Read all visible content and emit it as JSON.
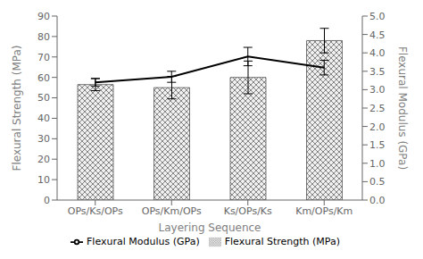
{
  "chart_data": {
    "type": "bar",
    "categories": [
      "OPs/Ks/OPs",
      "OPs/Km/OPs",
      "Ks/OPs/Ks",
      "Km/OPs/Km"
    ],
    "xlabel": "Layering Sequence",
    "ylabel": "Flexural Strength (MPa)",
    "y2label": "Flexural Modulus (GPa)",
    "series": [
      {
        "name": "Flexural Strength (MPa)",
        "type": "bar",
        "color": "#f0f0f0",
        "values": [
          56.5,
          55.0,
          60.0,
          78.0
        ],
        "errors": [
          3.0,
          5.5,
          8.0,
          6.0
        ]
      },
      {
        "name": "Flexural Modulus (GPa)",
        "type": "line",
        "color": "#000000",
        "axis": "y2",
        "values": [
          3.2,
          3.35,
          3.9,
          3.6
        ],
        "errors": [
          0.1,
          0.15,
          0.25,
          0.2
        ]
      }
    ],
    "ylim": [
      0,
      90
    ],
    "yticks": [
      0,
      10,
      20,
      30,
      40,
      50,
      60,
      70,
      80,
      90
    ],
    "y2lim": [
      0,
      5
    ],
    "y2ticks": [
      {
        "value": 0,
        "label": "0.0"
      },
      0.5,
      {
        "value": 1,
        "label": "1.0"
      },
      1.5,
      {
        "value": 2,
        "label": "2.0"
      },
      2.5,
      {
        "value": 3,
        "label": "3.0"
      },
      3.5,
      {
        "value": 4,
        "label": "4.0"
      },
      4.5,
      {
        "value": 5,
        "label": "5.0"
      }
    ],
    "legend": "bottom",
    "grid": false
  }
}
